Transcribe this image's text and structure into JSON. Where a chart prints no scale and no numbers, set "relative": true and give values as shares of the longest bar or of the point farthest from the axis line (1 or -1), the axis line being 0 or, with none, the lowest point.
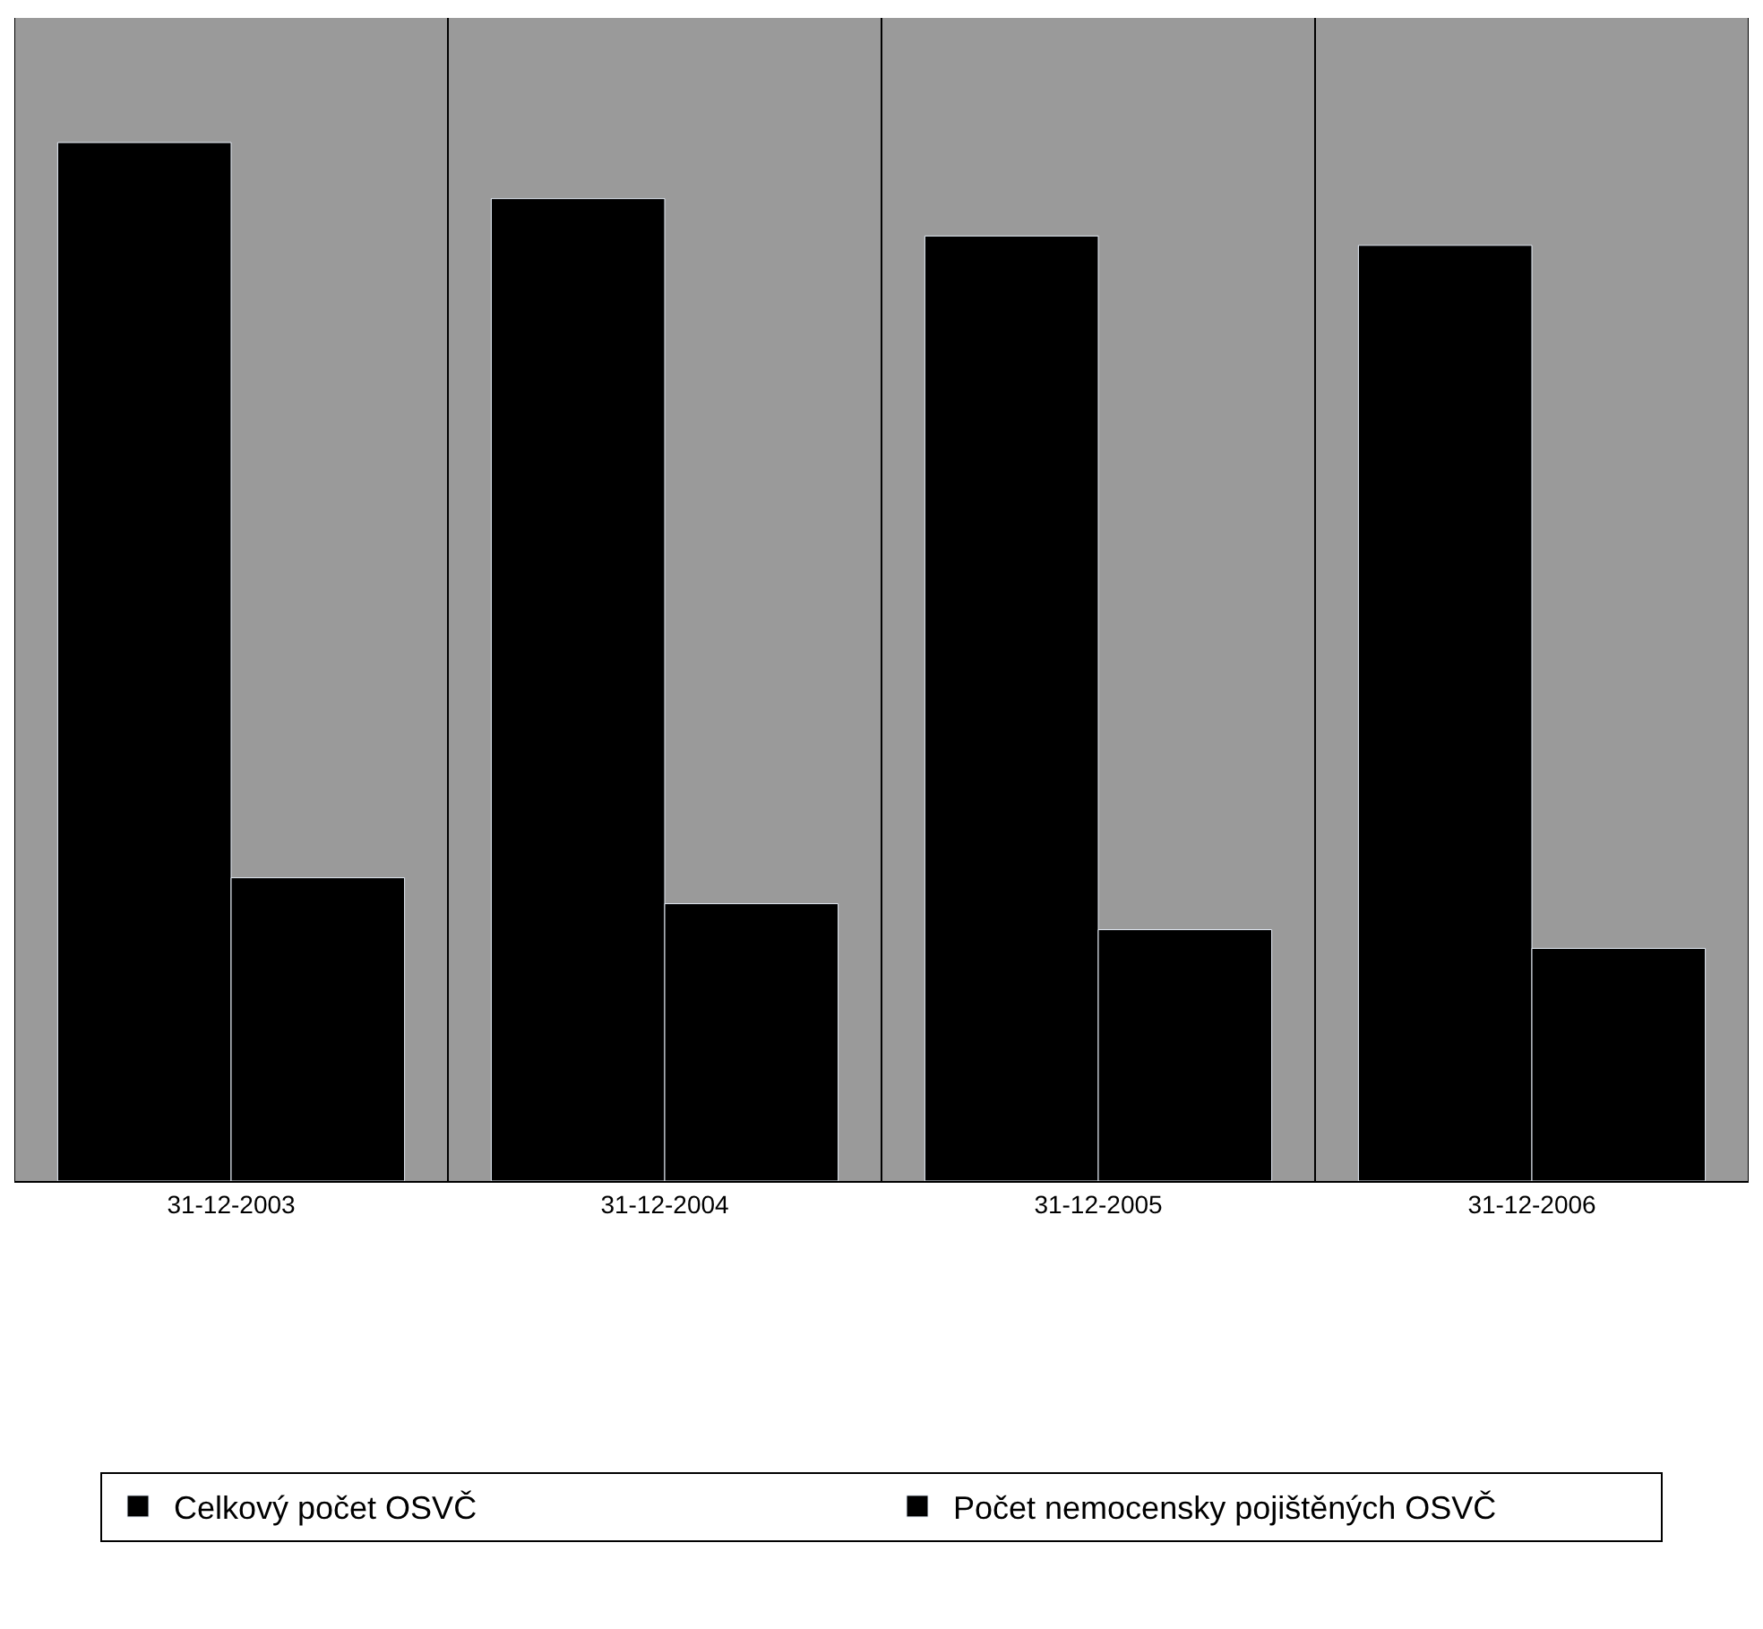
{
  "chart_data": {
    "type": "bar",
    "relative": true,
    "categories": [
      "31-12-2003",
      "31-12-2004",
      "31-12-2005",
      "31-12-2006"
    ],
    "series": [
      {
        "name": "Celkový počet OSVČ",
        "color": "#000000",
        "values": [
          1,
          0.946,
          0.91,
          0.901
        ]
      },
      {
        "name": "Počet nemocensky pojištěných OSVČ",
        "color": "#000000",
        "values": [
          0.292,
          0.267,
          0.242,
          0.224
        ]
      }
    ],
    "grid": "x",
    "legend": "bottom"
  }
}
